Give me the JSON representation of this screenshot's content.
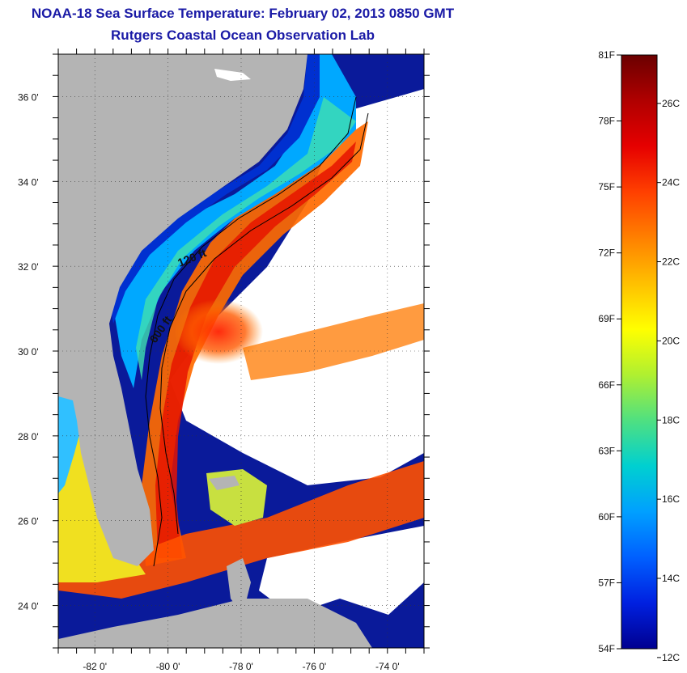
{
  "header": {
    "title": "NOAA-18 Sea Surface Temperature:  February 02, 2013 0850 GMT",
    "subtitle": "Rutgers Coastal Ocean Observation Lab"
  },
  "map": {
    "lon_range": [
      -83,
      -73
    ],
    "lat_range": [
      23,
      37
    ],
    "lon_ticks": [
      "-82 0'",
      "-80 0'",
      "-78 0'",
      "-76 0'",
      "-74 0'"
    ],
    "lat_ticks": [
      "36 0'",
      "34 0'",
      "32 0'",
      "30 0'",
      "28 0'",
      "26 0'",
      "24 0'"
    ],
    "contour_labels": [
      "120 ft",
      "600 ft"
    ],
    "land_color": "#b4b4b4",
    "cloud_color": "#ffffff"
  },
  "colorbar": {
    "fahrenheit_labels": [
      "81F",
      "78F",
      "75F",
      "72F",
      "69F",
      "66F",
      "63F",
      "60F",
      "57F",
      "54F"
    ],
    "celsius_labels": [
      "26C",
      "24C",
      "22C",
      "20C",
      "18C",
      "16C",
      "14C",
      "12C"
    ],
    "colors_top_to_bottom": [
      "#6b0000",
      "#b00000",
      "#e60000",
      "#ff4000",
      "#ff8000",
      "#ffc000",
      "#ffff00",
      "#b0f030",
      "#50e080",
      "#00d0d0",
      "#00a0ff",
      "#0060ff",
      "#0020e0",
      "#000090"
    ]
  }
}
